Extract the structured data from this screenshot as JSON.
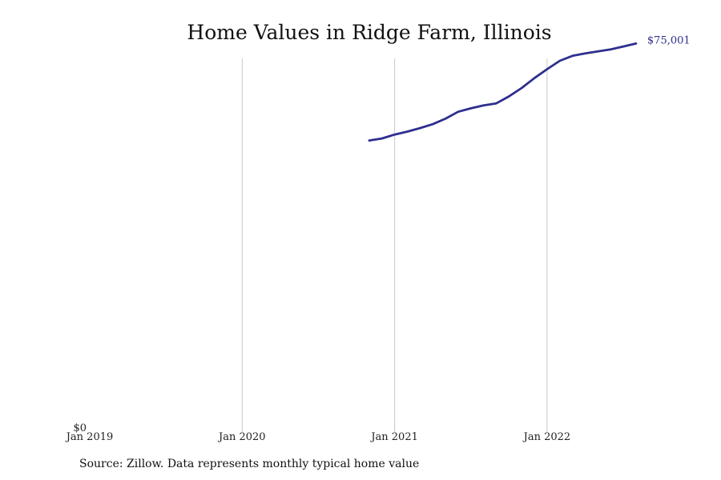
{
  "chart_data": {
    "type": "line",
    "title": "Home Values in Ridge Farm, Illinois",
    "xlabel": "",
    "ylabel": "",
    "x_ticks": [
      "Jan 2019",
      "Jan 2020",
      "Jan 2021",
      "Jan 2022"
    ],
    "y_ticks": [
      "$0"
    ],
    "ylim": [
      0,
      75001
    ],
    "grid": "vertical",
    "line_color": "#2e2e8f",
    "end_label": "$75,001",
    "series": [
      {
        "x": [
          "2020-11",
          "2020-12",
          "2021-01",
          "2021-02",
          "2021-03",
          "2021-04",
          "2021-05",
          "2021-06",
          "2021-07",
          "2021-08",
          "2021-09",
          "2021-10",
          "2021-11",
          "2021-12",
          "2022-01",
          "2022-02",
          "2022-03",
          "2022-04",
          "2022-05",
          "2022-06",
          "2022-07",
          "2022-08"
        ],
        "values": [
          58900,
          59300,
          60100,
          60700,
          61400,
          62200,
          63300,
          64700,
          65400,
          66000,
          66400,
          67800,
          69500,
          71500,
          73300,
          75000,
          76000,
          76500,
          76900,
          77300,
          77900,
          78500
        ]
      }
    ]
  },
  "footer": {
    "source": "Source: Zillow. Data represents monthly typical home value"
  }
}
